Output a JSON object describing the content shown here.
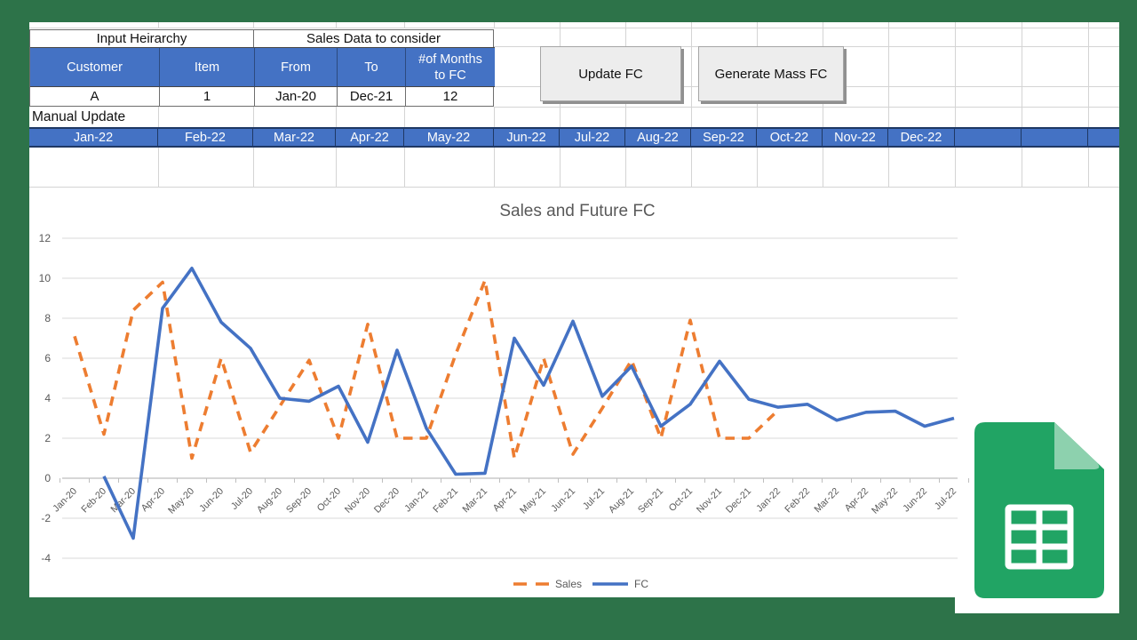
{
  "sheet": {
    "top_table": {
      "group_headers": [
        "Input Heirarchy",
        "Sales Data to consider"
      ],
      "columns": [
        "Customer",
        "Item",
        "From",
        "To",
        "#of Months to FC"
      ],
      "row": [
        "A",
        "1",
        "Jan-20",
        "Dec-21",
        "12"
      ],
      "manual_update_label": "Manual Update",
      "months": [
        "Jan-22",
        "Feb-22",
        "Mar-22",
        "Apr-22",
        "May-22",
        "Jun-22",
        "Jul-22",
        "Aug-22",
        "Sep-22",
        "Oct-22",
        "Nov-22",
        "Dec-22"
      ]
    },
    "buttons": [
      {
        "label": "Update FC"
      },
      {
        "label": "Generate Mass FC"
      }
    ]
  },
  "chart_data": {
    "type": "line",
    "title": "Sales and Future FC",
    "categories": [
      "Jan-20",
      "Feb-20",
      "Mar-20",
      "Apr-20",
      "May-20",
      "Jun-20",
      "Jul-20",
      "Aug-20",
      "Sep-20",
      "Oct-20",
      "Nov-20",
      "Dec-20",
      "Jan-21",
      "Feb-21",
      "Mar-21",
      "Apr-21",
      "May-21",
      "Jun-21",
      "Jul-21",
      "Aug-21",
      "Sep-21",
      "Oct-21",
      "Nov-21",
      "Dec-21",
      "Jan-22",
      "Feb-22",
      "Mar-22",
      "Apr-22",
      "May-22",
      "Jun-22",
      "Jul-22"
    ],
    "series": [
      {
        "name": "Sales",
        "style": "dashed",
        "color": "#ED7D31",
        "values": [
          7.1,
          2.2,
          8.4,
          9.8,
          1.0,
          6.0,
          1.3,
          3.6,
          5.9,
          2.0,
          7.7,
          2.0,
          2.0,
          6.2,
          9.9,
          1.0,
          6.0,
          1.2,
          3.5,
          5.9,
          2.0,
          7.9,
          2.0,
          2.0,
          3.4,
          null,
          null,
          null,
          null,
          null,
          null
        ]
      },
      {
        "name": "FC",
        "style": "solid",
        "color": "#4472C4",
        "values": [
          null,
          0.1,
          -3.0,
          8.5,
          10.5,
          7.8,
          6.5,
          4.0,
          3.85,
          4.6,
          1.8,
          6.4,
          2.5,
          0.2,
          0.25,
          7.0,
          4.65,
          7.85,
          4.1,
          5.6,
          2.6,
          3.7,
          5.85,
          3.95,
          3.55,
          3.7,
          2.9,
          3.3,
          3.35,
          2.6,
          3.0
        ]
      }
    ],
    "ylim": [
      -4,
      12
    ],
    "yticks": [
      -4,
      -2,
      0,
      2,
      4,
      6,
      8,
      10,
      12
    ],
    "grid": true,
    "legend_position": "bottom"
  },
  "colors": {
    "frame_green": "#2d7349",
    "header_blue": "#4472c4",
    "dark_border": "#1f3864",
    "sales_orange": "#ED7D31",
    "fc_blue": "#4472C4",
    "chart_text": "#595959"
  },
  "branding": {
    "icon": "google-sheets-icon",
    "icon_green": "#21a464",
    "icon_fold": "#8dd1ae"
  }
}
